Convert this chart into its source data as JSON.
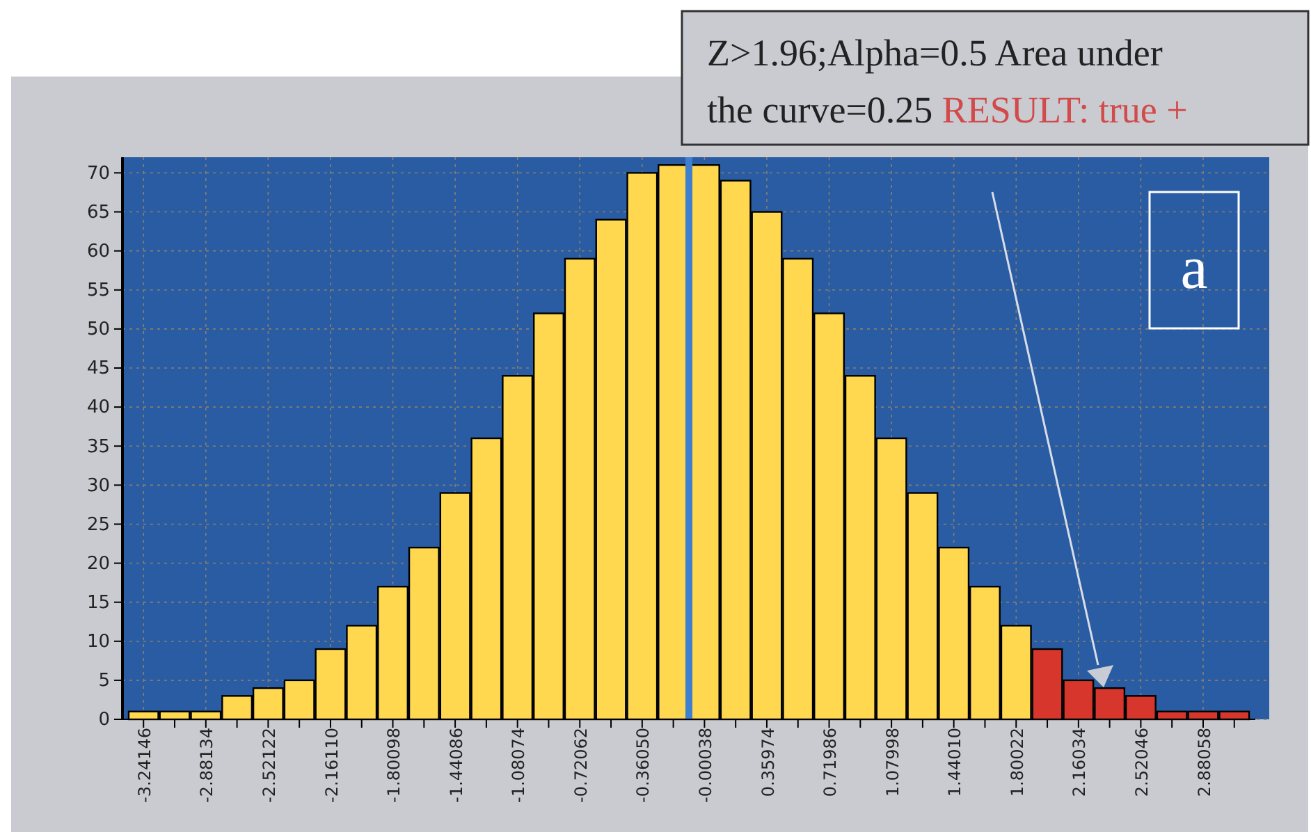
{
  "chart_data": {
    "type": "bar",
    "categories": [
      "-3.24146",
      null,
      "-2.88134",
      null,
      "-2.52122",
      null,
      "-2.16110",
      null,
      "-1.80098",
      null,
      "-1.44086",
      null,
      "-1.08074",
      null,
      "-0.72062",
      null,
      "-0.36050",
      null,
      "-0.00038",
      null,
      "0.35974",
      null,
      "0.71986",
      null,
      "1.07998",
      null,
      "1.44010",
      null,
      "1.80022",
      null,
      "2.16034",
      null,
      "2.52046",
      null,
      "2.88058",
      null
    ],
    "values": [
      1,
      1,
      1,
      3,
      4,
      5,
      9,
      12,
      17,
      22,
      29,
      36,
      44,
      52,
      59,
      64,
      70,
      71,
      71,
      69,
      65,
      59,
      52,
      44,
      36,
      29,
      22,
      17,
      12,
      9,
      5,
      4,
      3,
      1,
      1,
      1
    ],
    "colors": [
      "#ffd84f",
      "#ffd84f",
      "#ffd84f",
      "#ffd84f",
      "#ffd84f",
      "#ffd84f",
      "#ffd84f",
      "#ffd84f",
      "#ffd84f",
      "#ffd84f",
      "#ffd84f",
      "#ffd84f",
      "#ffd84f",
      "#ffd84f",
      "#ffd84f",
      "#ffd84f",
      "#ffd84f",
      "#ffd84f",
      "#ffd84f",
      "#ffd84f",
      "#ffd84f",
      "#ffd84f",
      "#ffd84f",
      "#ffd84f",
      "#ffd84f",
      "#ffd84f",
      "#ffd84f",
      "#ffd84f",
      "#ffd84f",
      "#d6362c",
      "#d6362c",
      "#d6362c",
      "#d6362c",
      "#d6362c",
      "#d6362c",
      "#d6362c"
    ],
    "ylim": [
      0,
      72
    ],
    "yticks": [
      0,
      5,
      10,
      15,
      20,
      25,
      30,
      35,
      40,
      45,
      50,
      55,
      60,
      65,
      70
    ],
    "grid": true,
    "ref_lines": [
      {
        "axis": "x",
        "value": "-0.00038",
        "color": "#3f7fd0"
      }
    ],
    "annotations": [
      "Z>1.96;Alpha=0.5 Area under the curve=0.25",
      "RESULT: true +",
      "a"
    ]
  }
}
